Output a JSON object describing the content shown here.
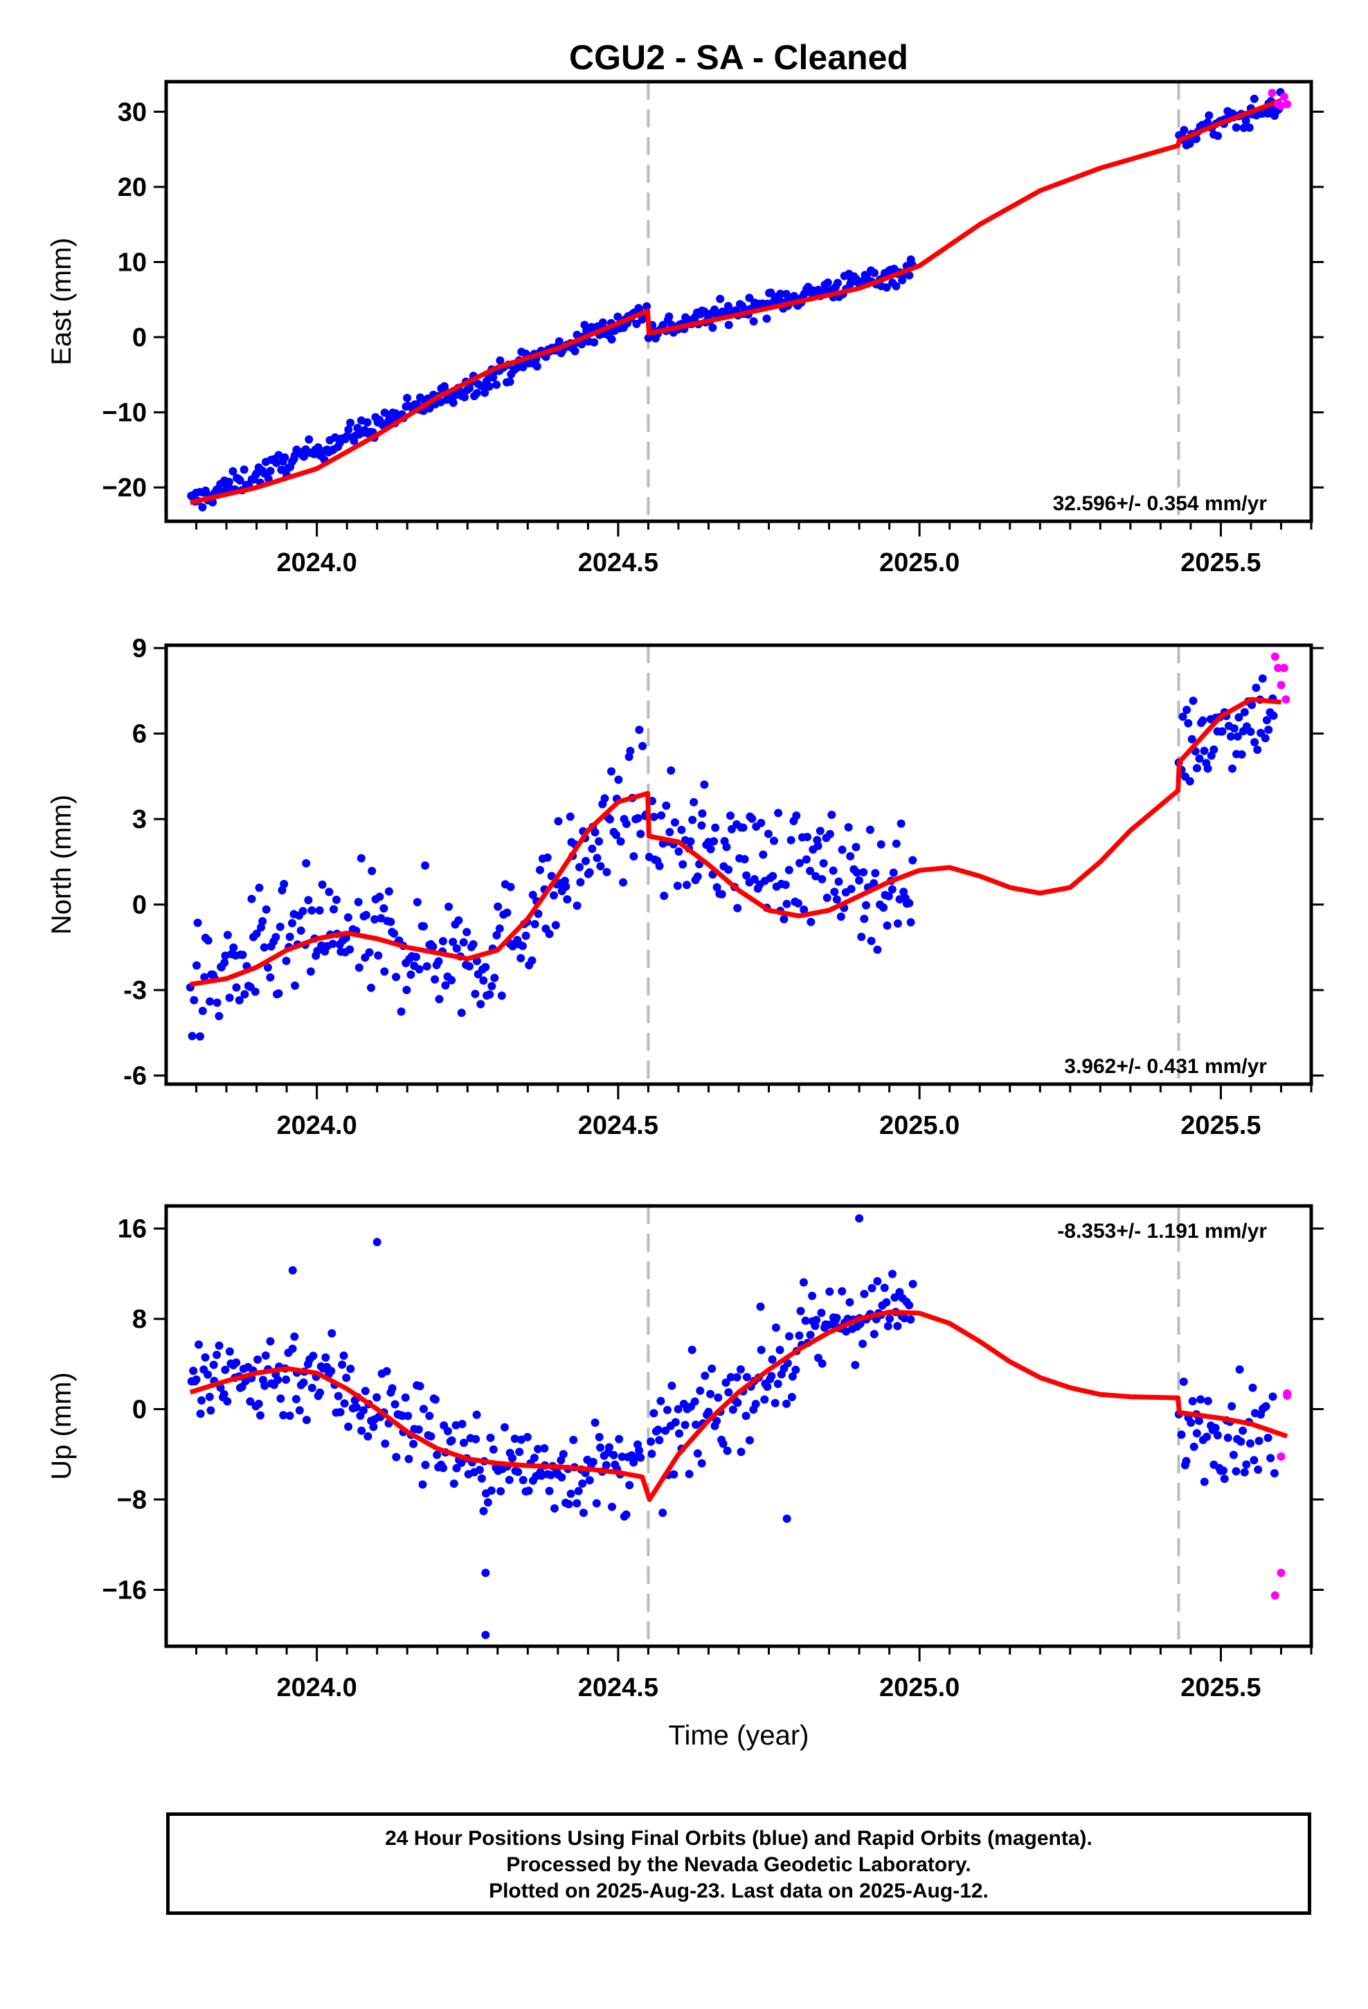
{
  "chart_data": [
    {
      "type": "scatter",
      "title": "CGU2  - SA - Cleaned",
      "ylabel": "East (mm)",
      "xlim": [
        2023.75,
        2025.65
      ],
      "ylim": [
        -24.5,
        34
      ],
      "xticks": [
        2024.0,
        2024.5,
        2025.0,
        2025.5
      ],
      "xtick_labels": [
        "2024.0",
        "2024.5",
        "2025.0",
        "2025.5"
      ],
      "yticks": [
        -20,
        -10,
        0,
        10,
        20,
        30
      ],
      "ytick_labels": [
        "−20",
        "−10",
        "0",
        "10",
        "20",
        "30"
      ],
      "rate_label": "32.596+/- 0.354 mm/yr",
      "offset_epochs": [
        2024.55,
        2025.43
      ],
      "fit": {
        "x": [
          2023.79,
          2023.9,
          2024.0,
          2024.1,
          2024.2,
          2024.3,
          2024.4,
          2024.549,
          2024.551,
          2024.7,
          2024.9,
          2025.0,
          2025.1,
          2025.2,
          2025.3,
          2025.429,
          2025.431,
          2025.5,
          2025.55,
          2025.6
        ],
        "y": [
          -22,
          -20,
          -17.5,
          -13,
          -8,
          -4,
          -1.5,
          3.5,
          0.5,
          3,
          6.5,
          9.5,
          15,
          19.5,
          22.5,
          25.5,
          26.2,
          28.5,
          30,
          31.5
        ]
      },
      "series": [
        {
          "color": "#0000ff",
          "segments": [
            [
              2023.79,
              2024.55,
              -22,
              3.5,
              1.1
            ],
            [
              2024.55,
              2024.99,
              0.8,
              9,
              1.1
            ],
            [
              2025.43,
              2025.6,
              26.5,
              31,
              1.2
            ]
          ],
          "excluded": []
        },
        {
          "color": "#ff00ff",
          "x": [
            2025.585,
            2025.595,
            2025.6,
            2025.61,
            2025.605
          ],
          "y": [
            32.5,
            31,
            30.8,
            31,
            32
          ]
        }
      ]
    },
    {
      "type": "scatter",
      "ylabel": "North (mm)",
      "xlim": [
        2023.75,
        2025.65
      ],
      "ylim": [
        -6.3,
        9.1
      ],
      "xticks": [
        2024.0,
        2024.5,
        2025.0,
        2025.5
      ],
      "xtick_labels": [
        "2024.0",
        "2024.5",
        "2025.0",
        "2025.5"
      ],
      "yticks": [
        -6,
        -3,
        0,
        3,
        6,
        9
      ],
      "ytick_labels": [
        "-6",
        "-3",
        "0",
        "3",
        "6",
        "9"
      ],
      "rate_label": "3.962+/- 0.431 mm/yr",
      "offset_epochs": [
        2024.55,
        2025.43
      ],
      "fit": {
        "x": [
          2023.79,
          2023.85,
          2023.9,
          2023.95,
          2024.0,
          2024.05,
          2024.1,
          2024.15,
          2024.2,
          2024.25,
          2024.3,
          2024.35,
          2024.4,
          2024.45,
          2024.5,
          2024.549,
          2024.551,
          2024.6,
          2024.65,
          2024.7,
          2024.75,
          2024.8,
          2024.85,
          2024.9,
          2024.95,
          2025.0,
          2025.05,
          2025.1,
          2025.15,
          2025.2,
          2025.25,
          2025.3,
          2025.35,
          2025.429,
          2025.431,
          2025.5,
          2025.55,
          2025.6
        ],
        "y": [
          -2.8,
          -2.6,
          -2.2,
          -1.6,
          -1.2,
          -1.0,
          -1.2,
          -1.5,
          -1.7,
          -1.9,
          -1.6,
          -0.5,
          1.0,
          2.6,
          3.6,
          3.9,
          2.4,
          2.2,
          1.4,
          0.5,
          -0.2,
          -0.4,
          -0.2,
          0.3,
          0.8,
          1.2,
          1.3,
          1.0,
          0.6,
          0.4,
          0.6,
          1.5,
          2.6,
          4.0,
          5.0,
          6.6,
          7.2,
          7.1
        ]
      },
      "series": [
        {
          "color": "#0000ff",
          "segments": [
            [
              2023.79,
              2024.0,
              -3,
              -1,
              1.5
            ],
            [
              2024.0,
              2024.3,
              -1,
              -1.8,
              1.6
            ],
            [
              2024.3,
              2024.549,
              -1.5,
              4,
              1.4
            ],
            [
              2024.551,
              2024.99,
              2.4,
              0.5,
              1.4
            ],
            [
              2025.43,
              2025.59,
              5.5,
              7,
              1.1
            ]
          ],
          "excluded": []
        },
        {
          "color": "#ff00ff",
          "x": [
            2025.59,
            2025.595,
            2025.6,
            2025.605,
            2025.608
          ],
          "y": [
            8.7,
            8.3,
            7.7,
            8.3,
            7.2
          ]
        }
      ]
    },
    {
      "type": "scatter",
      "ylabel": "Up (mm)",
      "xlabel": "Time (year)",
      "xlim": [
        2023.75,
        2025.65
      ],
      "ylim": [
        -21,
        18
      ],
      "xticks": [
        2024.0,
        2024.5,
        2025.0,
        2025.5
      ],
      "xtick_labels": [
        "2024.0",
        "2024.5",
        "2025.0",
        "2025.5"
      ],
      "yticks": [
        -16,
        -8,
        0,
        8,
        16
      ],
      "ytick_labels": [
        "−16",
        "−8",
        "0",
        "8",
        "16"
      ],
      "rate_label": "-8.353+/- 1.191 mm/yr",
      "offset_epochs": [
        2024.55,
        2025.43
      ],
      "fit": {
        "x": [
          2023.79,
          2023.85,
          2023.9,
          2023.95,
          2024.0,
          2024.05,
          2024.1,
          2024.15,
          2024.2,
          2024.25,
          2024.3,
          2024.35,
          2024.4,
          2024.45,
          2024.5,
          2024.54,
          2024.552,
          2024.6,
          2024.65,
          2024.7,
          2024.75,
          2024.8,
          2024.85,
          2024.9,
          2024.95,
          2025.0,
          2025.05,
          2025.1,
          2025.15,
          2025.2,
          2025.25,
          2025.3,
          2025.35,
          2025.429,
          2025.431,
          2025.5,
          2025.55,
          2025.61
        ],
        "y": [
          1.5,
          2.5,
          3.2,
          3.6,
          3.2,
          1.8,
          0,
          -2,
          -3.5,
          -4.4,
          -4.8,
          -5,
          -5.1,
          -5.3,
          -5.6,
          -6,
          -8,
          -4,
          -1,
          1.5,
          3.5,
          5.3,
          6.8,
          8,
          8.6,
          8.5,
          7.6,
          6,
          4.2,
          2.8,
          1.9,
          1.3,
          1.1,
          1.0,
          -0.3,
          -0.8,
          -1.3,
          -2.4
        ]
      },
      "series": [
        {
          "color": "#0000ff",
          "segments": [
            [
              2023.79,
              2024.0,
              2,
              3.5,
              3.0
            ],
            [
              2024.0,
              2024.25,
              3,
              -4,
              3.2
            ],
            [
              2024.25,
              2024.54,
              -5,
              -5.5,
              2.8
            ],
            [
              2024.552,
              2024.85,
              -4,
              7,
              3.2
            ],
            [
              2024.85,
              2024.99,
              8,
              8.6,
              2.4
            ],
            [
              2025.43,
              2025.59,
              -1,
              -2,
              3.0
            ]
          ],
          "excluded": [
            [
              2024.28,
              -20
            ],
            [
              2024.28,
              -14.5
            ],
            [
              2024.9,
              16.9
            ],
            [
              2024.1,
              14.8
            ],
            [
              2023.96,
              12.3
            ],
            [
              2024.78,
              -9.7
            ]
          ]
        },
        {
          "color": "#ff00ff",
          "x": [
            2025.59,
            2025.6,
            2025.61,
            2025.6,
            2025.61
          ],
          "y": [
            -16.5,
            -14.5,
            1.2,
            -4.2,
            1.4
          ]
        }
      ]
    }
  ],
  "footer": {
    "line1": "24 Hour Positions Using Final Orbits (blue) and Rapid Orbits (magenta).",
    "line2": "Processed by the Nevada Geodetic Laboratory.",
    "line3": "Plotted on 2025-Aug-23. Last data on 2025-Aug-12."
  }
}
